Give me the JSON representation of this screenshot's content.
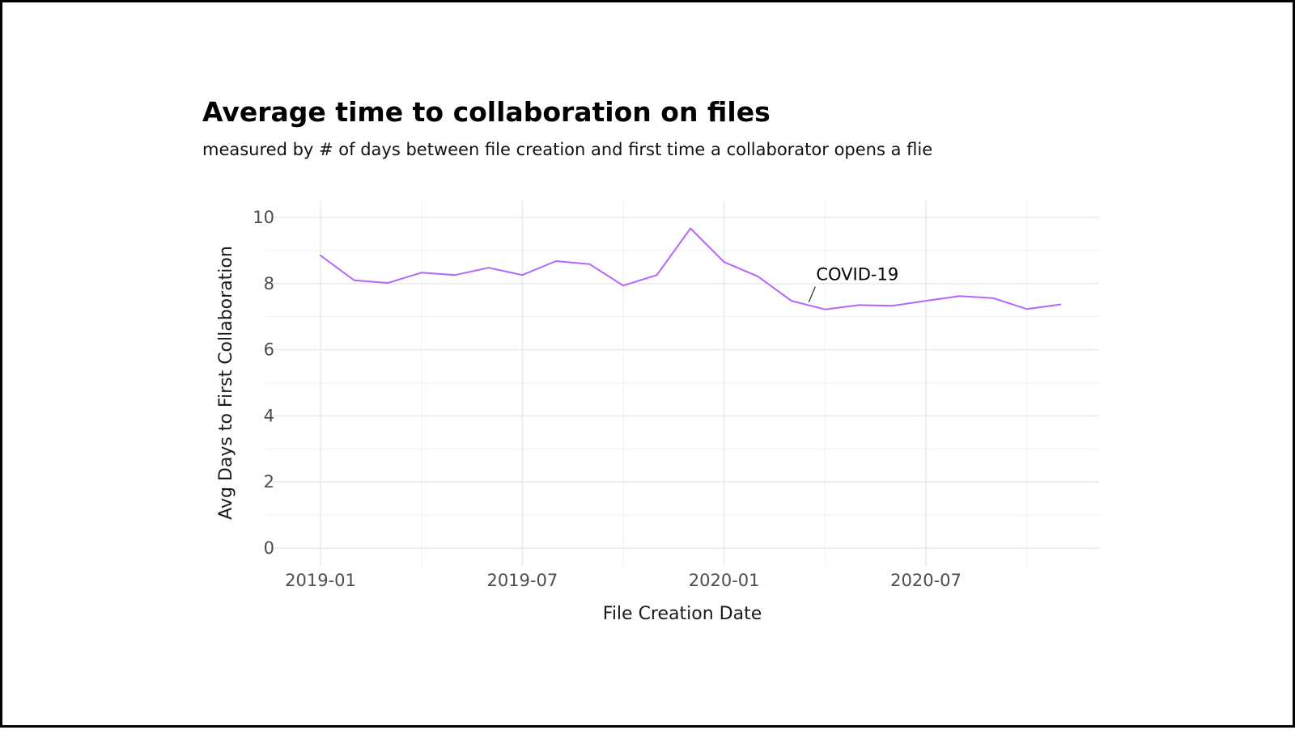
{
  "chart_data": {
    "type": "line",
    "title": "Average time to collaboration on files",
    "subtitle": "measured by # of days between file creation and first time a collaborator opens a flie",
    "xlabel": "File Creation Date",
    "ylabel": "Avg Days to First Collaboration",
    "ylim": [
      0,
      10
    ],
    "yticks": [
      0,
      2,
      4,
      6,
      8,
      10
    ],
    "xlim": [
      "2018-12",
      "2021-01"
    ],
    "xticks": [
      "2019-01",
      "2019-07",
      "2020-01",
      "2020-07"
    ],
    "grid": true,
    "line_color": "#b266ff",
    "series": [
      {
        "x": [
          "2019-01",
          "2019-02",
          "2019-03",
          "2019-04",
          "2019-05",
          "2019-06",
          "2019-07",
          "2019-08",
          "2019-09",
          "2019-10",
          "2019-11",
          "2019-12",
          "2020-01",
          "2020-02",
          "2020-03",
          "2020-04",
          "2020-05",
          "2020-06",
          "2020-07",
          "2020-08",
          "2020-09",
          "2020-10",
          "2020-11"
        ],
        "values": [
          8.85,
          8.1,
          8.02,
          8.33,
          8.26,
          8.48,
          8.26,
          8.68,
          8.59,
          7.94,
          8.26,
          9.67,
          8.65,
          8.22,
          7.48,
          7.22,
          7.35,
          7.33,
          7.48,
          7.62,
          7.56,
          7.23,
          7.37
        ]
      }
    ],
    "annotations": [
      {
        "text": "COVID-19",
        "x": "2020-04",
        "y": 8.1
      }
    ]
  }
}
